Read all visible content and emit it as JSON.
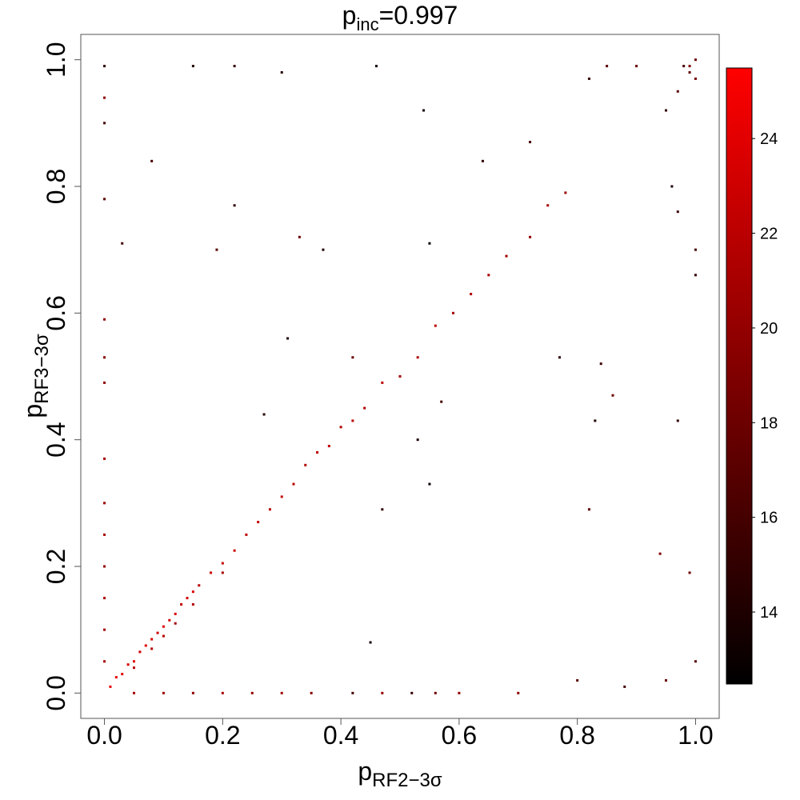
{
  "chart_data": {
    "type": "scatter",
    "title": {
      "base": "p",
      "sub": "inc",
      "rest": "=0.997"
    },
    "xlabel": {
      "base": "p",
      "sub": "RF2−3σ"
    },
    "ylabel": {
      "base": "p",
      "sub": "RF3−3σ"
    },
    "xlim": [
      -0.04,
      1.04
    ],
    "ylim": [
      -0.04,
      1.04
    ],
    "xticks": [
      {
        "value": 0,
        "label": "0.0"
      },
      {
        "value": 0.2,
        "label": "0.2"
      },
      {
        "value": 0.4,
        "label": "0.4"
      },
      {
        "value": 0.6,
        "label": "0.6"
      },
      {
        "value": 0.8,
        "label": "0.8"
      },
      {
        "value": 1,
        "label": "1.0"
      }
    ],
    "yticks": [
      {
        "value": 0,
        "label": "0.0"
      },
      {
        "value": 0.2,
        "label": "0.2"
      },
      {
        "value": 0.4,
        "label": "0.4"
      },
      {
        "value": 0.6,
        "label": "0.6"
      },
      {
        "value": 0.8,
        "label": "0.8"
      },
      {
        "value": 1,
        "label": "1.0"
      }
    ],
    "zlim": [
      12.48,
      25.49
    ],
    "zticks": [
      14,
      16,
      18,
      20,
      22,
      24
    ],
    "colormap": [
      "#000000",
      "#ff0000"
    ],
    "x": [
      0.01,
      0.02,
      0.03,
      0.04,
      0.05,
      0.06,
      0.07,
      0.08,
      0.09,
      0.1,
      0.11,
      0.12,
      0.13,
      0.14,
      0.15,
      0.16,
      0.18,
      0.2,
      0.22,
      0.24,
      0.26,
      0.28,
      0.3,
      0.32,
      0.34,
      0.36,
      0.38,
      0.4,
      0.42,
      0.44,
      0.47,
      0.5,
      0.53,
      0.56,
      0.59,
      0.62,
      0.65,
      0.68,
      0.72,
      0.75,
      0.78,
      0.05,
      0.08,
      0.1,
      0.12,
      0.15,
      0.2,
      0,
      0,
      0,
      0,
      0,
      0,
      0,
      0,
      0,
      0,
      0,
      0,
      0,
      0,
      0.05,
      0.1,
      0.15,
      0.2,
      0.25,
      0.3,
      0.35,
      0.42,
      0.47,
      0.52,
      0.56,
      0.6,
      0.7,
      0.8,
      0.88,
      0.95,
      1,
      0.99,
      0.99,
      1,
      0.98,
      0.97,
      0.95,
      0.9,
      0.85,
      0.82,
      1,
      1,
      0.97,
      0.96,
      1,
      0.99,
      0.15,
      0.22,
      0.46,
      0.3,
      0.08,
      0.22,
      0.19,
      0.03,
      0.33,
      0.37,
      0.55,
      0.64,
      0.72,
      0.54,
      0.31,
      0.42,
      0.27,
      0.47,
      0.55,
      0.53,
      0.57,
      0.77,
      0.84,
      0.82,
      0.45,
      0.94,
      0.97,
      0.83,
      0.86
    ],
    "y": [
      0.01,
      0.025,
      0.03,
      0.045,
      0.05,
      0.065,
      0.075,
      0.085,
      0.095,
      0.105,
      0.115,
      0.125,
      0.14,
      0.15,
      0.16,
      0.17,
      0.19,
      0.205,
      0.225,
      0.25,
      0.27,
      0.29,
      0.31,
      0.33,
      0.36,
      0.38,
      0.39,
      0.42,
      0.43,
      0.45,
      0.49,
      0.5,
      0.53,
      0.58,
      0.6,
      0.63,
      0.66,
      0.69,
      0.72,
      0.77,
      0.79,
      0.04,
      0.07,
      0.09,
      0.11,
      0.14,
      0.19,
      0.05,
      0.1,
      0.15,
      0.2,
      0.25,
      0.3,
      0.37,
      0.49,
      0.53,
      0.59,
      0.78,
      0.9,
      0.94,
      0.99,
      0,
      0,
      0,
      0,
      0,
      0,
      0,
      0,
      0,
      0,
      0,
      0,
      0,
      0.02,
      0.01,
      0.02,
      1,
      0.99,
      0.98,
      0.97,
      0.99,
      0.95,
      0.92,
      0.99,
      0.99,
      0.97,
      0.7,
      0.66,
      0.76,
      0.8,
      0.05,
      0.19,
      0.99,
      0.99,
      0.99,
      0.98,
      0.84,
      0.77,
      0.7,
      0.71,
      0.72,
      0.7,
      0.71,
      0.84,
      0.87,
      0.92,
      0.56,
      0.53,
      0.44,
      0.29,
      0.33,
      0.4,
      0.46,
      0.53,
      0.52,
      0.29,
      0.08,
      0.22,
      0.43,
      0.43,
      0.47
    ],
    "z": [
      24,
      24.5,
      24,
      23.5,
      24,
      23,
      24,
      23.5,
      23,
      24,
      23,
      23.5,
      22.5,
      23,
      23.5,
      22,
      23,
      22.5,
      23,
      22,
      22.5,
      22,
      22.5,
      22,
      21.5,
      22,
      22.5,
      21.5,
      22,
      21.5,
      22,
      21,
      21.5,
      22,
      21,
      21.5,
      21,
      20.5,
      20,
      21,
      20.5,
      22,
      21.5,
      22,
      21,
      21.5,
      21,
      21,
      20.5,
      21,
      20,
      21,
      20.5,
      21,
      20,
      19.5,
      20,
      17,
      16,
      20,
      15,
      21,
      20.5,
      20,
      21,
      20,
      20.5,
      19.5,
      16,
      20,
      15,
      18,
      20,
      19.5,
      17,
      16,
      18,
      18,
      19,
      17.5,
      18.5,
      16,
      17,
      15,
      18,
      17,
      15,
      16,
      15,
      15.5,
      14,
      17,
      18,
      14,
      15,
      13.5,
      14.5,
      16,
      15,
      17,
      16,
      18,
      14,
      13,
      15,
      16,
      13.5,
      14,
      18,
      14.5,
      15,
      13,
      14,
      16,
      15,
      15.5,
      17,
      13.5,
      19,
      15,
      14,
      18
    ]
  }
}
